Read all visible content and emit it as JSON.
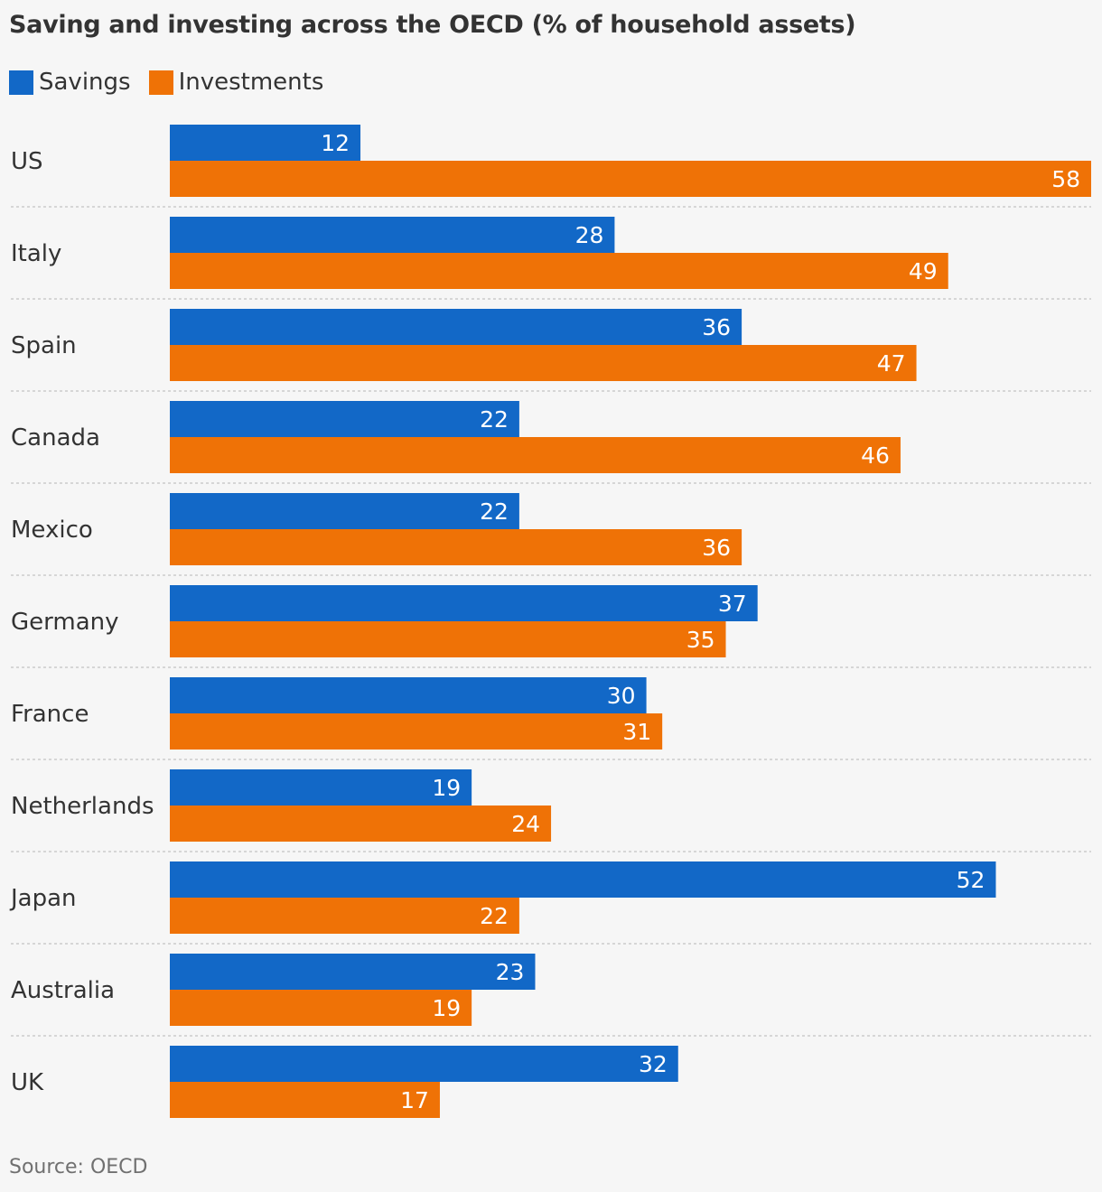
{
  "title": "Saving and investing across the OECD (% of household assets)",
  "source": "Source: OECD",
  "colors": {
    "savings": "#1268c7",
    "investments": "#ef7206",
    "divider": "#cccccc",
    "label_text": "#ffffff",
    "category_text": "#333333"
  },
  "chart_data": {
    "type": "bar",
    "orientation": "horizontal",
    "title": "Saving and investing across the OECD (% of household assets)",
    "categories": [
      "US",
      "Italy",
      "Spain",
      "Canada",
      "Mexico",
      "Germany",
      "France",
      "Netherlands",
      "Japan",
      "Australia",
      "UK"
    ],
    "series": [
      {
        "name": "Savings",
        "values": [
          12,
          28,
          36,
          22,
          22,
          37,
          30,
          19,
          52,
          23,
          32
        ]
      },
      {
        "name": "Investments",
        "values": [
          58,
          49,
          47,
          46,
          36,
          35,
          31,
          24,
          22,
          19,
          17
        ]
      }
    ],
    "xlim": [
      0,
      58
    ],
    "xlabel": "",
    "ylabel": "",
    "legend": "top-left",
    "grid": false,
    "data_labels": true
  }
}
